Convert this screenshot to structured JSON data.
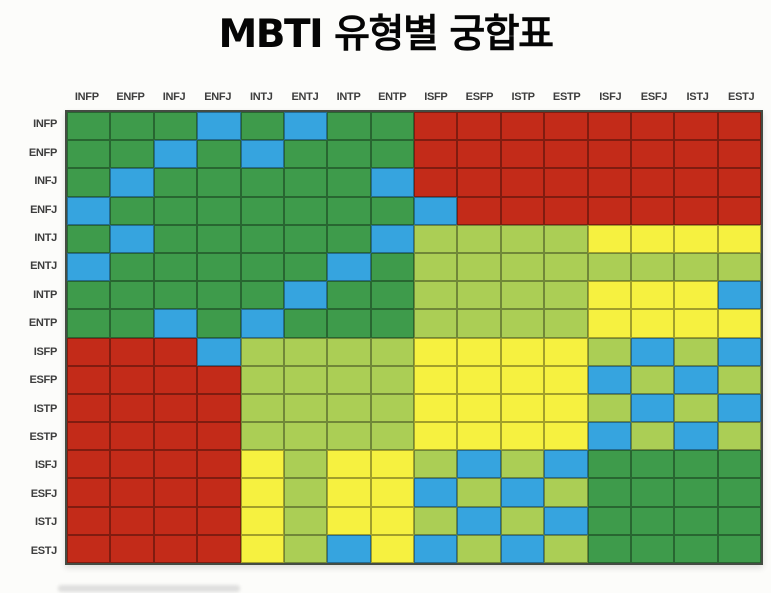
{
  "page": {
    "title": "MBTI 유형별 궁합표"
  },
  "chart_data": {
    "type": "heatmap",
    "title": "MBTI 유형별 궁합표",
    "x_labels": [
      "INFP",
      "ENFP",
      "INFJ",
      "ENFJ",
      "INTJ",
      "ENTJ",
      "INTP",
      "ENTP",
      "ISFP",
      "ESFP",
      "ISTP",
      "ESTP",
      "ISFJ",
      "ESFJ",
      "ISTJ",
      "ESTJ"
    ],
    "y_labels": [
      "INFP",
      "ENFP",
      "INFJ",
      "ENFJ",
      "INTJ",
      "ENTJ",
      "INTP",
      "ENTP",
      "ISFP",
      "ESFP",
      "ISTP",
      "ESTP",
      "ISFJ",
      "ESFJ",
      "ISTJ",
      "ESTJ"
    ],
    "grid": true,
    "legend_position": "none",
    "palette": {
      "B": "#36A4DF",
      "G": "#3E9B4B",
      "LG": "#ABCE55",
      "Y": "#F6F140",
      "R": "#C32B19"
    },
    "matrix": [
      [
        "G",
        "G",
        "G",
        "B",
        "G",
        "B",
        "G",
        "G",
        "R",
        "R",
        "R",
        "R",
        "R",
        "R",
        "R",
        "R"
      ],
      [
        "G",
        "G",
        "B",
        "G",
        "B",
        "G",
        "G",
        "G",
        "R",
        "R",
        "R",
        "R",
        "R",
        "R",
        "R",
        "R"
      ],
      [
        "G",
        "B",
        "G",
        "G",
        "G",
        "G",
        "G",
        "B",
        "R",
        "R",
        "R",
        "R",
        "R",
        "R",
        "R",
        "R"
      ],
      [
        "B",
        "G",
        "G",
        "G",
        "G",
        "G",
        "G",
        "G",
        "B",
        "R",
        "R",
        "R",
        "R",
        "R",
        "R",
        "R"
      ],
      [
        "G",
        "B",
        "G",
        "G",
        "G",
        "G",
        "G",
        "B",
        "LG",
        "LG",
        "LG",
        "LG",
        "Y",
        "Y",
        "Y",
        "Y"
      ],
      [
        "B",
        "G",
        "G",
        "G",
        "G",
        "G",
        "B",
        "G",
        "LG",
        "LG",
        "LG",
        "LG",
        "LG",
        "LG",
        "LG",
        "LG"
      ],
      [
        "G",
        "G",
        "G",
        "G",
        "G",
        "B",
        "G",
        "G",
        "LG",
        "LG",
        "LG",
        "LG",
        "Y",
        "Y",
        "Y",
        "B"
      ],
      [
        "G",
        "G",
        "B",
        "G",
        "B",
        "G",
        "G",
        "G",
        "LG",
        "LG",
        "LG",
        "LG",
        "Y",
        "Y",
        "Y",
        "Y"
      ],
      [
        "R",
        "R",
        "R",
        "B",
        "LG",
        "LG",
        "LG",
        "LG",
        "Y",
        "Y",
        "Y",
        "Y",
        "LG",
        "B",
        "LG",
        "B"
      ],
      [
        "R",
        "R",
        "R",
        "R",
        "LG",
        "LG",
        "LG",
        "LG",
        "Y",
        "Y",
        "Y",
        "Y",
        "B",
        "LG",
        "B",
        "LG"
      ],
      [
        "R",
        "R",
        "R",
        "R",
        "LG",
        "LG",
        "LG",
        "LG",
        "Y",
        "Y",
        "Y",
        "Y",
        "LG",
        "B",
        "LG",
        "B"
      ],
      [
        "R",
        "R",
        "R",
        "R",
        "LG",
        "LG",
        "LG",
        "LG",
        "Y",
        "Y",
        "Y",
        "Y",
        "B",
        "LG",
        "B",
        "LG"
      ],
      [
        "R",
        "R",
        "R",
        "R",
        "Y",
        "LG",
        "Y",
        "Y",
        "LG",
        "B",
        "LG",
        "B",
        "G",
        "G",
        "G",
        "G"
      ],
      [
        "R",
        "R",
        "R",
        "R",
        "Y",
        "LG",
        "Y",
        "Y",
        "B",
        "LG",
        "B",
        "LG",
        "G",
        "G",
        "G",
        "G"
      ],
      [
        "R",
        "R",
        "R",
        "R",
        "Y",
        "LG",
        "Y",
        "Y",
        "LG",
        "B",
        "LG",
        "B",
        "G",
        "G",
        "G",
        "G"
      ],
      [
        "R",
        "R",
        "R",
        "R",
        "Y",
        "LG",
        "B",
        "Y",
        "B",
        "LG",
        "B",
        "LG",
        "G",
        "G",
        "G",
        "G"
      ]
    ]
  }
}
